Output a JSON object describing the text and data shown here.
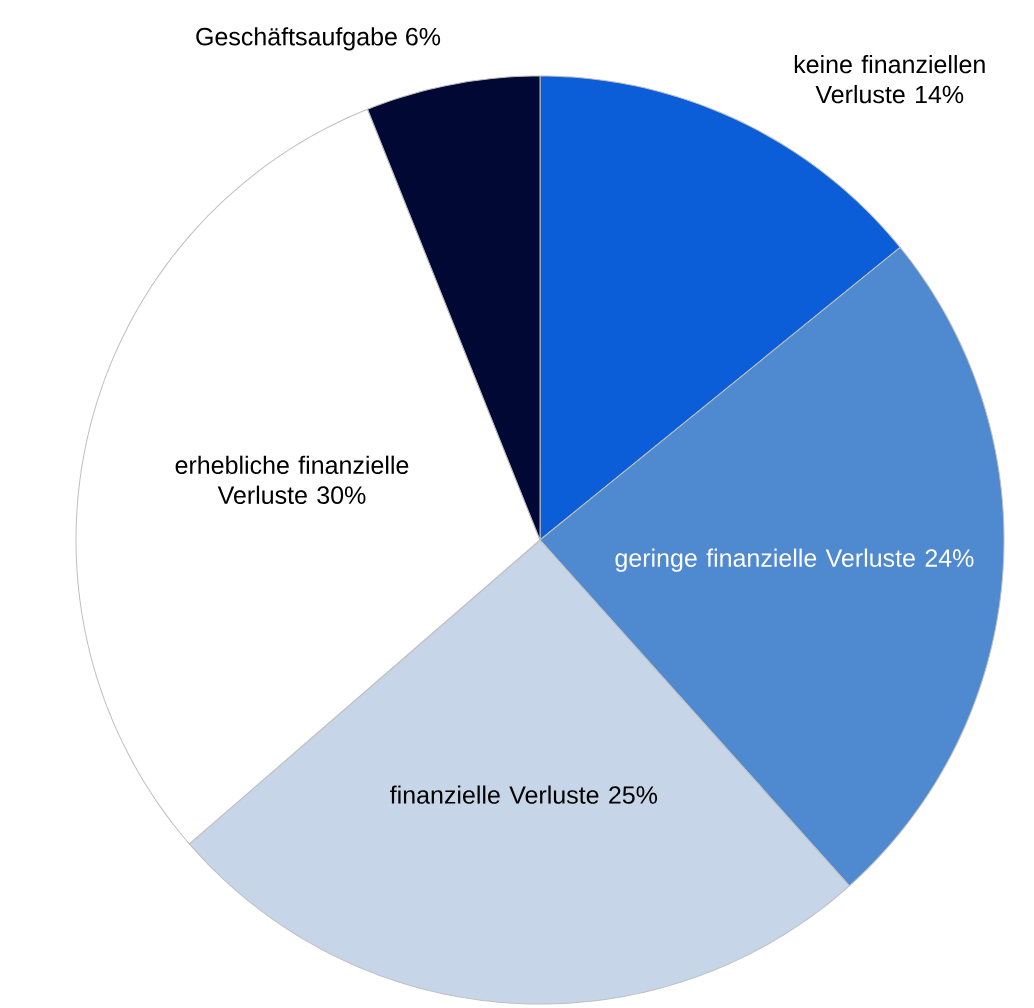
{
  "chart_data": {
    "type": "pie",
    "categories": [
      "keine finanziellen Verluste",
      "geringe finanzielle Verluste",
      "finanzielle Verluste",
      "erhebliche finanzielle Verluste",
      "Geschäftsaufgabe"
    ],
    "values": [
      14,
      24,
      25,
      30,
      6
    ],
    "value_labels": [
      "14%",
      "24%",
      "25%",
      "30%",
      "6%"
    ],
    "colors": [
      "#0b5ed7",
      "#4f89cf",
      "#c6d5e8",
      "#ffffff",
      "#000833"
    ]
  }
}
